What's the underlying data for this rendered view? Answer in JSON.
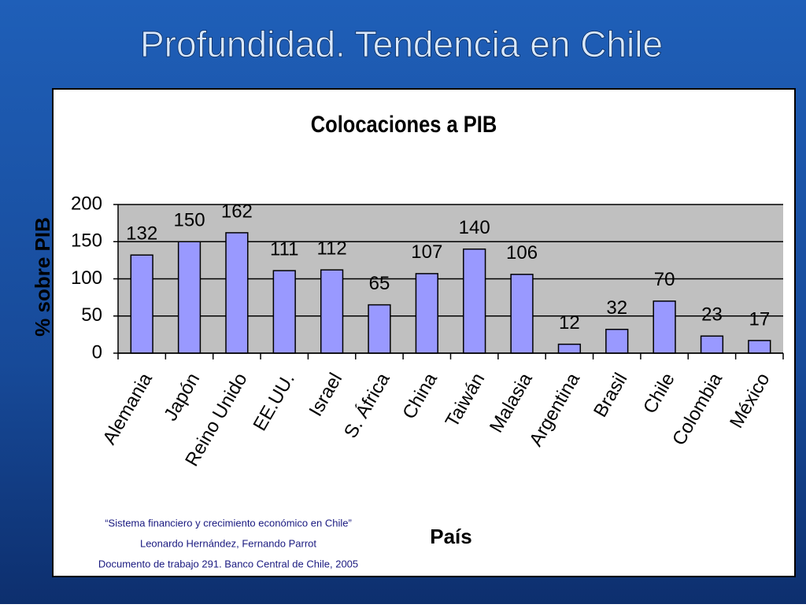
{
  "slide": {
    "title": "Profundidad. Tendencia en Chile"
  },
  "chart_data": {
    "type": "bar",
    "title": "Colocaciones a PIB",
    "y_label": "% sobre PIB",
    "x_label": "País",
    "categories": [
      "Alemania",
      "Japón",
      "Reino Unido",
      "EE.UU.",
      "Israel",
      "S. África",
      "China",
      "Taiwán",
      "Malasia",
      "Argentina",
      "Brasil",
      "Chile",
      "Colombia",
      "México"
    ],
    "values": [
      132,
      150,
      162,
      111,
      112,
      65,
      107,
      140,
      106,
      12,
      32,
      70,
      23,
      17
    ],
    "color": "#9999ff",
    "ylim": [
      0,
      200
    ],
    "yticks": [
      0,
      50,
      100,
      150,
      200
    ],
    "grid": true
  },
  "source": [
    "“Sistema financiero y crecimiento económico en Chile”",
    "Leonardo Hernández, Fernando Parrot",
    "Documento de trabajo 291. Banco Central de Chile, 2005"
  ]
}
